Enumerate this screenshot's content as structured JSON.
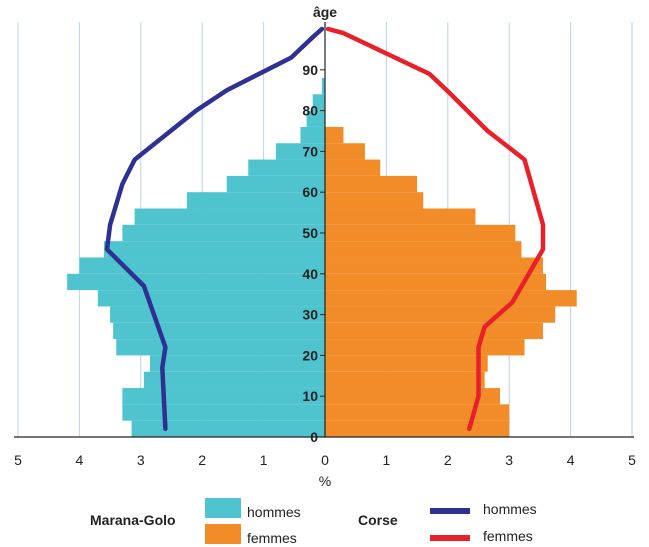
{
  "chart_data": {
    "type": "bar",
    "orientation": "horizontal-population-pyramid",
    "age_axis_title": "âge",
    "value_axis_title": "%",
    "x_ticks": [
      "5",
      "4",
      "3",
      "2",
      "1",
      "0",
      "1",
      "2",
      "3",
      "4",
      "5"
    ],
    "age_ticks": [
      "0",
      "10",
      "20",
      "30",
      "40",
      "50",
      "60",
      "70",
      "80",
      "90"
    ],
    "xlim": [
      -5,
      5
    ],
    "ylim": [
      0,
      100
    ],
    "age_bands": [
      [
        0,
        4
      ],
      [
        4,
        8
      ],
      [
        8,
        12
      ],
      [
        12,
        16
      ],
      [
        16,
        20
      ],
      [
        20,
        24
      ],
      [
        24,
        28
      ],
      [
        28,
        32
      ],
      [
        32,
        36
      ],
      [
        36,
        40
      ],
      [
        40,
        44
      ],
      [
        44,
        48
      ],
      [
        48,
        52
      ],
      [
        52,
        56
      ],
      [
        56,
        60
      ],
      [
        60,
        64
      ],
      [
        64,
        68
      ],
      [
        68,
        72
      ],
      [
        72,
        76
      ],
      [
        76,
        80
      ],
      [
        80,
        84
      ],
      [
        84,
        88
      ],
      [
        88,
        92
      ],
      [
        92,
        96
      ],
      [
        96,
        100
      ]
    ],
    "series": [
      {
        "name": "hommes",
        "group": "Marana-Golo",
        "color": "#4FC4CF",
        "side": "left",
        "values": [
          3.15,
          3.3,
          3.3,
          2.95,
          2.85,
          3.4,
          3.45,
          3.5,
          3.7,
          4.2,
          4.0,
          3.6,
          3.3,
          3.1,
          2.25,
          1.6,
          1.25,
          0.8,
          0.4,
          0.3,
          0.2,
          0.05,
          0.0,
          0.0,
          0.0
        ]
      },
      {
        "name": "femmes",
        "group": "Marana-Golo",
        "color": "#F28C28",
        "side": "right",
        "values": [
          3.0,
          3.0,
          2.85,
          2.6,
          2.65,
          3.25,
          3.55,
          3.75,
          4.1,
          3.6,
          3.55,
          3.2,
          3.1,
          2.45,
          1.6,
          1.5,
          0.9,
          0.65,
          0.3,
          0.0,
          0.0,
          0.0,
          0.0,
          0.0,
          0.0
        ]
      },
      {
        "name": "hommes",
        "group": "Corse",
        "color": "#2E3192",
        "side": "left",
        "style": "line",
        "points": [
          [
            2.6,
            2
          ],
          [
            2.65,
            17
          ],
          [
            2.6,
            22
          ],
          [
            2.95,
            37
          ],
          [
            3.55,
            46
          ],
          [
            3.5,
            52
          ],
          [
            3.3,
            62
          ],
          [
            3.1,
            68
          ],
          [
            2.1,
            80
          ],
          [
            1.6,
            85
          ],
          [
            0.55,
            93
          ],
          [
            0.2,
            98
          ],
          [
            0.05,
            100
          ]
        ]
      },
      {
        "name": "femmes",
        "group": "Corse",
        "color": "#E8202A",
        "side": "right",
        "style": "line",
        "points": [
          [
            2.35,
            2
          ],
          [
            2.5,
            10
          ],
          [
            2.5,
            22
          ],
          [
            2.6,
            27
          ],
          [
            3.05,
            33
          ],
          [
            3.55,
            46
          ],
          [
            3.55,
            52
          ],
          [
            3.25,
            68
          ],
          [
            2.65,
            75
          ],
          [
            2.05,
            84
          ],
          [
            1.7,
            89
          ],
          [
            1.0,
            94
          ],
          [
            0.3,
            99
          ],
          [
            0.05,
            100
          ]
        ]
      }
    ],
    "grid": "vertical",
    "legend": {
      "position": "bottom",
      "groups": [
        {
          "label": "Marana-Golo",
          "items": [
            {
              "label": "hommes",
              "color": "#4FC4CF",
              "kind": "box"
            },
            {
              "label": "femmes",
              "color": "#F28C28",
              "kind": "box"
            }
          ]
        },
        {
          "label": "Corse",
          "items": [
            {
              "label": "hommes",
              "color": "#2E3192",
              "kind": "line"
            },
            {
              "label": "femmes",
              "color": "#E8202A",
              "kind": "line"
            }
          ]
        }
      ]
    }
  }
}
